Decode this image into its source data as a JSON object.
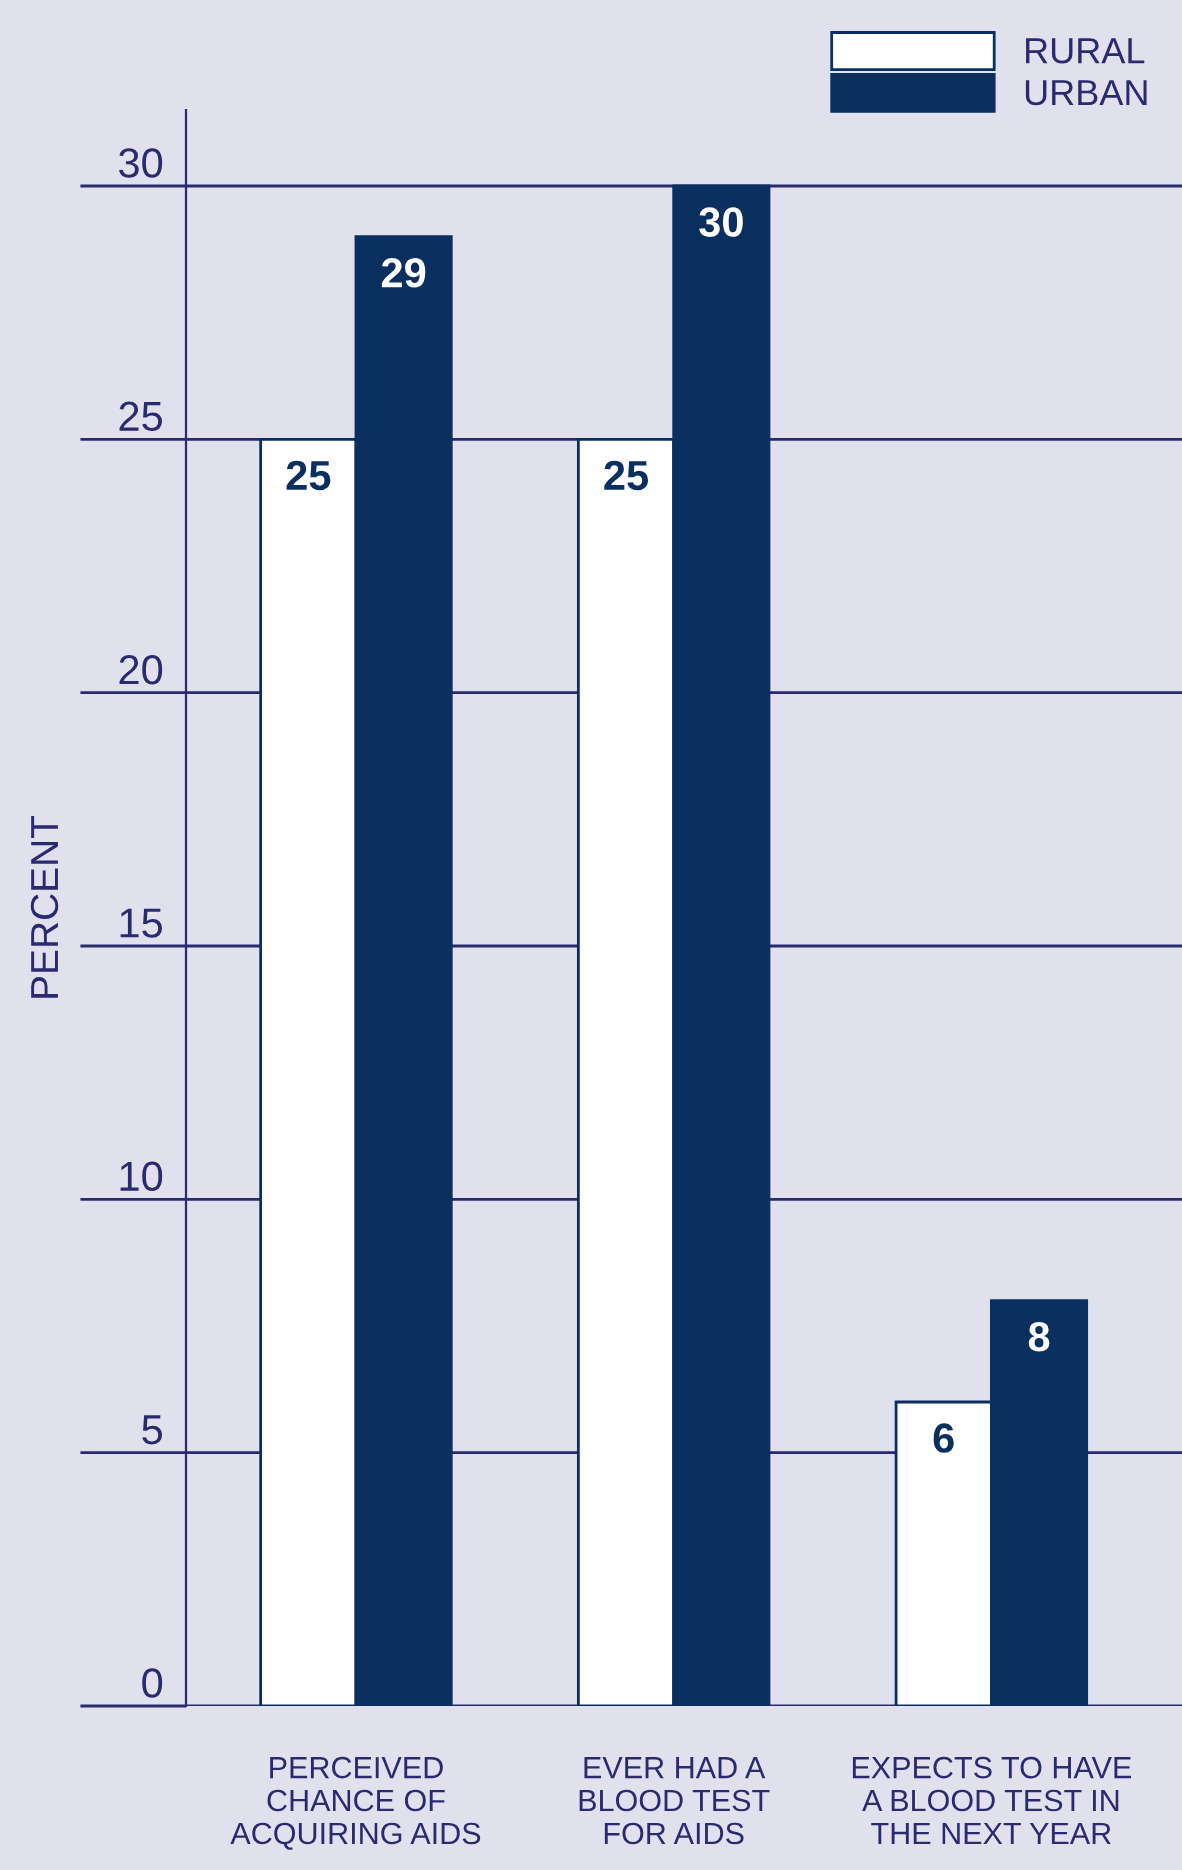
{
  "chart_data": {
    "type": "bar",
    "ylabel": "PERCENT",
    "categories": [
      "PERCEIVED\nCHANCE OF\nACQUIRING AIDS",
      "EVER HAD A\nBLOOD TEST\nFOR AIDS",
      "EXPECTS TO HAVE\nA BLOOD TEST IN\nTHE NEXT YEAR"
    ],
    "series": [
      {
        "name": "RURAL",
        "color": "#ffffff",
        "values": [
          25,
          25,
          6
        ]
      },
      {
        "name": "URBAN",
        "color": "#0b2f5e",
        "values": [
          29,
          30,
          8
        ]
      }
    ],
    "ylim": [
      0,
      31.5
    ],
    "yticks": [
      0,
      5,
      10,
      15,
      20,
      25,
      30
    ],
    "grid": "y",
    "legend": "top right",
    "data_labels": true
  }
}
